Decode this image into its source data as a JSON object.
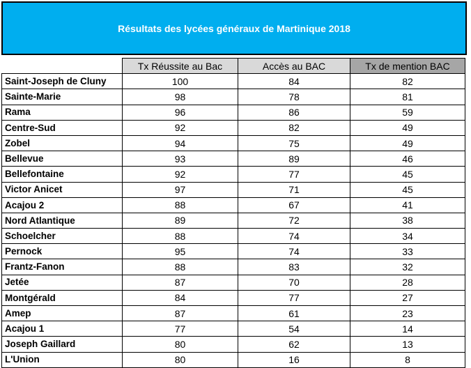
{
  "title": "Résultats des lycées généraux de Martinique 2018",
  "colors": {
    "title_bg": "#00aeef",
    "header_bg": "#d9d9d9",
    "header_last_bg": "#a6a6a6"
  },
  "chart_data": {
    "type": "table",
    "title": "Résultats des lycées généraux de Martinique 2018",
    "columns": [
      "",
      "Tx Réussite au Bac",
      "Accès au BAC",
      "Tx de mention BAC"
    ],
    "rows": [
      [
        "Saint-Joseph de Cluny",
        "100",
        "84",
        "82"
      ],
      [
        "Sainte-Marie",
        "98",
        "78",
        "81"
      ],
      [
        "Rama",
        "96",
        "86",
        "59"
      ],
      [
        "Centre-Sud",
        "92",
        "82",
        "49"
      ],
      [
        "Zobel",
        "94",
        "75",
        "49"
      ],
      [
        "Bellevue",
        "93",
        "89",
        "46"
      ],
      [
        "Bellefontaine",
        "92",
        "77",
        "45"
      ],
      [
        "Victor Anicet",
        "97",
        "71",
        "45"
      ],
      [
        "Acajou 2",
        "88",
        "67",
        "41"
      ],
      [
        "Nord Atlantique",
        "89",
        "72",
        "38"
      ],
      [
        "Schoelcher",
        "88",
        "74",
        "34"
      ],
      [
        "Pernock",
        "95",
        "74",
        "33"
      ],
      [
        "Frantz-Fanon",
        "88",
        "83",
        "32"
      ],
      [
        "Jetée",
        "87",
        "70",
        "28"
      ],
      [
        "Montgérald",
        "84",
        "77",
        "27"
      ],
      [
        "Amep",
        "87",
        "61",
        "23"
      ],
      [
        "Acajou 1",
        "77",
        "54",
        "14"
      ],
      [
        "Joseph Gaillard",
        "80",
        "62",
        "13"
      ],
      [
        "L'Union",
        "80",
        "16",
        "8"
      ]
    ]
  }
}
